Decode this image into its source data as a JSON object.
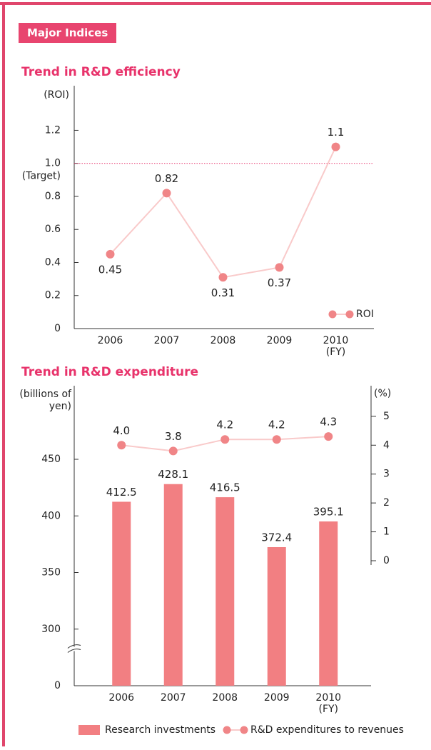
{
  "header": {
    "label": "Major Indices"
  },
  "chart_data": [
    {
      "type": "line",
      "title": "Trend in R&D efficiency",
      "y_label": "(ROI)",
      "x_label": "(FY)",
      "categories": [
        "2006",
        "2007",
        "2008",
        "2009",
        "2010"
      ],
      "series": [
        {
          "name": "ROI",
          "color": "#f08587",
          "line_color": "#f9caca",
          "values": [
            0.45,
            0.82,
            0.31,
            0.37,
            1.1
          ]
        }
      ],
      "ylim": [
        0,
        1.47
      ],
      "yticks": [
        0,
        0.2,
        0.4,
        0.6,
        0.8,
        {
          "value": 1,
          "label": "1.0"
        },
        1.2
      ],
      "target": {
        "value": 1,
        "label": "(Target)",
        "color": "#e8336b"
      },
      "legend": "lower right"
    },
    {
      "type": "combo",
      "title": "Trend in R&D expenditure",
      "y_label": "(billions of yen)",
      "y2_label": "(%)",
      "x_label": "(FY)",
      "categories": [
        "2006",
        "2007",
        "2008",
        "2009",
        "2010"
      ],
      "series": [
        {
          "name": "Research investments",
          "type": "bar",
          "color": "#f27f82",
          "values": [
            412.5,
            428.1,
            416.5,
            372.4,
            395.1
          ]
        },
        {
          "name": "R&D expenditures to revenues",
          "type": "line",
          "axis": "y2",
          "color": "#f08587",
          "line_color": "#f9caca",
          "values": [
            4,
            3.8,
            4.2,
            4.2,
            4.3
          ],
          "value_labels": [
            "4.0",
            "3.8",
            "4.2",
            "4.2",
            "4.3"
          ]
        }
      ],
      "ylim": [
        0,
        515
      ],
      "axis_break": [
        0,
        250
      ],
      "yticks": [
        0,
        300,
        350,
        400,
        450
      ],
      "y2lim": [
        0,
        6.06
      ],
      "y2ticks": [
        0,
        1,
        2,
        3,
        4,
        5
      ],
      "legend": "bottom"
    }
  ]
}
